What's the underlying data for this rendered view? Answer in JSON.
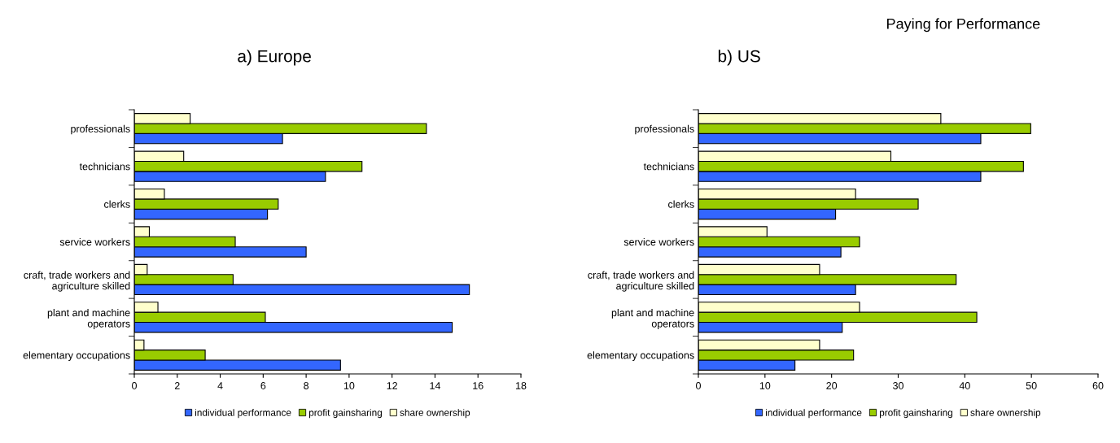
{
  "chart_data": [
    {
      "type": "bar",
      "orientation": "horizontal",
      "title": "a) Europe",
      "legend": "bottom",
      "grid": false,
      "categories": [
        "professionals",
        "technicians",
        "clerks",
        "service workers",
        "craft, trade workers and\nagriculture skilled",
        "plant and machine\noperators",
        "elementary occupations"
      ],
      "xlim": [
        0,
        18
      ],
      "xticks": [
        0,
        2,
        4,
        6,
        8,
        10,
        12,
        14,
        16,
        18
      ],
      "series": [
        {
          "name": "individual performance",
          "color": "#3366ff",
          "values": [
            6.9,
            8.9,
            6.2,
            8.0,
            15.6,
            14.8,
            9.6
          ]
        },
        {
          "name": "profit gainsharing",
          "color": "#99cc00",
          "values": [
            13.6,
            10.6,
            6.7,
            4.7,
            4.6,
            6.1,
            3.3
          ]
        },
        {
          "name": "share ownership",
          "color": "#ffffcc",
          "values": [
            2.6,
            2.3,
            1.4,
            0.7,
            0.6,
            1.1,
            0.45
          ]
        }
      ]
    },
    {
      "type": "bar",
      "orientation": "horizontal",
      "title": "b) US",
      "legend": "bottom",
      "grid": false,
      "annotations": [
        "Paying for Performance"
      ],
      "categories": [
        "professionals",
        "technicians",
        "clerks",
        "service workers",
        "craft, trade workers and\nagriculture skilled",
        "plant and machine\noperators",
        "elementary occupations"
      ],
      "xlim": [
        0,
        60
      ],
      "xticks": [
        0,
        10,
        20,
        30,
        40,
        50,
        60
      ],
      "series": [
        {
          "name": "individual performance",
          "color": "#3366ff",
          "values": [
            42.4,
            42.4,
            20.6,
            21.4,
            23.6,
            21.6,
            14.5
          ]
        },
        {
          "name": "profit gainsharing",
          "color": "#99cc00",
          "values": [
            49.9,
            48.8,
            33.0,
            24.2,
            38.7,
            41.8,
            23.3
          ]
        },
        {
          "name": "share ownership",
          "color": "#ffffcc",
          "values": [
            36.4,
            28.9,
            23.6,
            10.3,
            18.2,
            24.2,
            18.2
          ]
        }
      ]
    }
  ]
}
